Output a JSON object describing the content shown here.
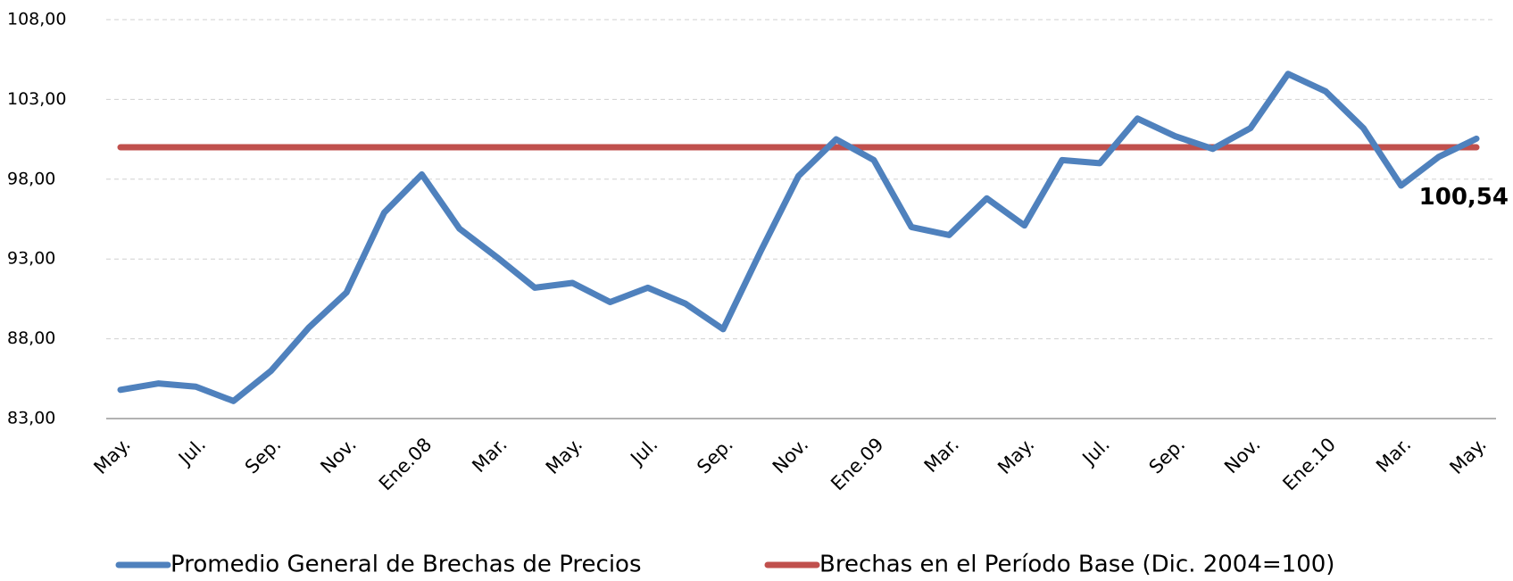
{
  "chart_data": {
    "type": "line",
    "categories": [
      "May.",
      null,
      "Jul.",
      null,
      "Sep.",
      null,
      "Nov.",
      null,
      "Ene.08",
      null,
      "Mar.",
      null,
      "May.",
      null,
      "Jul.",
      null,
      "Sep.",
      null,
      "Nov.",
      null,
      "Ene.09",
      null,
      "Mar.",
      null,
      "May.",
      null,
      "Jul.",
      null,
      "Sep.",
      null,
      "Nov.",
      null,
      "Ene.10",
      null,
      "Mar.",
      null,
      "May."
    ],
    "series": [
      {
        "name": "Promedio General de Brechas de Precios",
        "color": "#4f81bd",
        "values": [
          84.8,
          85.2,
          85.0,
          84.1,
          86.0,
          88.7,
          90.9,
          95.9,
          98.3,
          94.9,
          93.1,
          91.2,
          91.5,
          90.3,
          91.2,
          90.2,
          88.6,
          93.5,
          98.2,
          100.5,
          99.2,
          95.0,
          94.5,
          96.8,
          95.1,
          99.2,
          99.0,
          101.8,
          100.7,
          99.9,
          101.2,
          104.6,
          103.5,
          101.2,
          97.6,
          99.4,
          100.54
        ],
        "value_labels": [
          null,
          null,
          null,
          null,
          null,
          null,
          null,
          null,
          null,
          null,
          null,
          null,
          null,
          null,
          null,
          null,
          null,
          null,
          null,
          null,
          null,
          null,
          null,
          null,
          null,
          null,
          null,
          null,
          null,
          null,
          null,
          null,
          null,
          null,
          null,
          null,
          "100,54"
        ]
      },
      {
        "name": "Brechas en el Período Base (Dic. 2004=100)",
        "color": "#c0504d",
        "values": [
          100,
          100,
          100,
          100,
          100,
          100,
          100,
          100,
          100,
          100,
          100,
          100,
          100,
          100,
          100,
          100,
          100,
          100,
          100,
          100,
          100,
          100,
          100,
          100,
          100,
          100,
          100,
          100,
          100,
          100,
          100,
          100,
          100,
          100,
          100,
          100,
          100
        ]
      }
    ],
    "ylim": [
      83,
      108
    ],
    "yticks": [
      {
        "value": 83,
        "label": "83,00"
      },
      {
        "value": 88,
        "label": "88,00"
      },
      {
        "value": 93,
        "label": "93,00"
      },
      {
        "value": 98,
        "label": "98,00"
      },
      {
        "value": 103,
        "label": "103,00"
      },
      {
        "value": 108,
        "label": "108,00"
      }
    ],
    "grid": true
  }
}
